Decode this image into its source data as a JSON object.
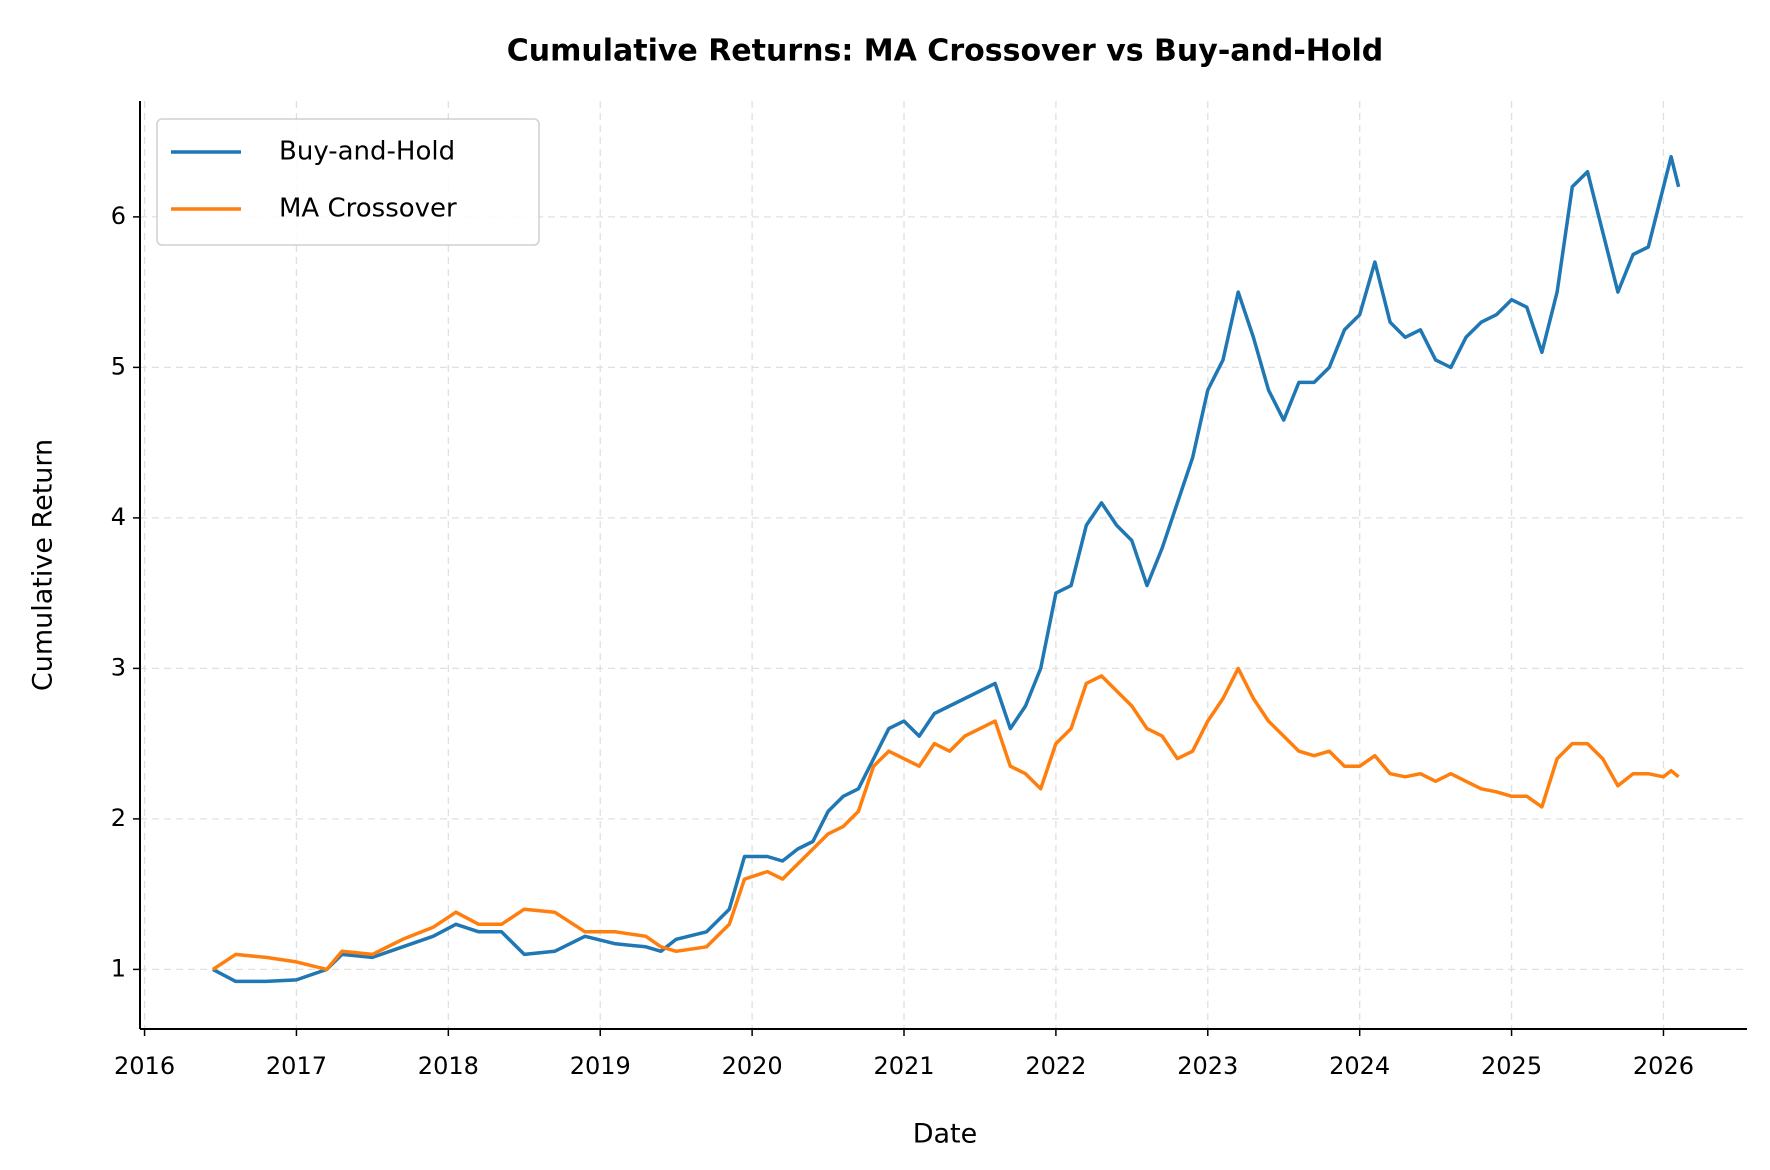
{
  "chart_data": {
    "type": "line",
    "title": "Cumulative Returns: MA Crossover vs Buy-and-Hold",
    "x_label": "Date",
    "y_label": "Cumulative Return",
    "x": [
      2016.45,
      2016.6,
      2016.8,
      2017.0,
      2017.2,
      2017.3,
      2017.5,
      2017.7,
      2017.9,
      2018.05,
      2018.2,
      2018.35,
      2018.5,
      2018.7,
      2018.9,
      2019.1,
      2019.3,
      2019.4,
      2019.5,
      2019.7,
      2019.85,
      2019.95,
      2020.1,
      2020.2,
      2020.3,
      2020.4,
      2020.5,
      2020.6,
      2020.7,
      2020.8,
      2020.9,
      2021.0,
      2021.1,
      2021.2,
      2021.3,
      2021.4,
      2021.5,
      2021.6,
      2021.7,
      2021.8,
      2021.9,
      2022.0,
      2022.1,
      2022.2,
      2022.3,
      2022.4,
      2022.5,
      2022.6,
      2022.7,
      2022.8,
      2022.9,
      2023.0,
      2023.1,
      2023.2,
      2023.3,
      2023.4,
      2023.5,
      2023.6,
      2023.7,
      2023.8,
      2023.9,
      2024.0,
      2024.1,
      2024.2,
      2024.3,
      2024.4,
      2024.5,
      2024.6,
      2024.7,
      2024.8,
      2024.9,
      2025.0,
      2025.1,
      2025.2,
      2025.3,
      2025.4,
      2025.5,
      2025.6,
      2025.7,
      2025.8,
      2025.9,
      2026.0,
      2026.05,
      2026.1
    ],
    "series": [
      {
        "name": "Buy-and-Hold",
        "color": "#1f77b4",
        "values": [
          1.0,
          0.92,
          0.92,
          0.93,
          1.0,
          1.1,
          1.08,
          1.15,
          1.22,
          1.3,
          1.25,
          1.25,
          1.1,
          1.12,
          1.22,
          1.17,
          1.15,
          1.12,
          1.2,
          1.25,
          1.4,
          1.75,
          1.75,
          1.72,
          1.8,
          1.85,
          2.05,
          2.15,
          2.2,
          2.4,
          2.6,
          2.65,
          2.55,
          2.7,
          2.75,
          2.8,
          2.85,
          2.9,
          2.6,
          2.75,
          3.0,
          3.5,
          3.55,
          3.95,
          4.1,
          3.95,
          3.85,
          3.55,
          3.8,
          4.1,
          4.4,
          4.85,
          5.05,
          5.5,
          5.2,
          4.85,
          4.65,
          4.9,
          4.9,
          5.0,
          5.25,
          5.35,
          5.7,
          5.3,
          5.2,
          5.25,
          5.05,
          5.0,
          5.2,
          5.3,
          5.35,
          5.45,
          5.4,
          5.1,
          5.5,
          6.2,
          6.3,
          5.9,
          5.5,
          5.75,
          5.8,
          6.2,
          6.4,
          6.2
        ]
      },
      {
        "name": "MA Crossover",
        "color": "#ff7f0e",
        "values": [
          1.0,
          1.1,
          1.08,
          1.05,
          1.0,
          1.12,
          1.1,
          1.2,
          1.28,
          1.38,
          1.3,
          1.3,
          1.4,
          1.38,
          1.25,
          1.25,
          1.22,
          1.15,
          1.12,
          1.15,
          1.3,
          1.6,
          1.65,
          1.6,
          1.7,
          1.8,
          1.9,
          1.95,
          2.05,
          2.35,
          2.45,
          2.4,
          2.35,
          2.5,
          2.45,
          2.55,
          2.6,
          2.65,
          2.35,
          2.3,
          2.2,
          2.5,
          2.6,
          2.9,
          2.95,
          2.85,
          2.75,
          2.6,
          2.55,
          2.4,
          2.45,
          2.65,
          2.8,
          3.0,
          2.8,
          2.65,
          2.55,
          2.45,
          2.42,
          2.45,
          2.35,
          2.35,
          2.42,
          2.3,
          2.28,
          2.3,
          2.25,
          2.3,
          2.25,
          2.2,
          2.18,
          2.15,
          2.15,
          2.08,
          2.4,
          2.5,
          2.5,
          2.4,
          2.22,
          2.3,
          2.3,
          2.28,
          2.32,
          2.28
        ]
      }
    ],
    "xlim": [
      2015.97,
      2026.55
    ],
    "xticks": [
      2016,
      2017,
      2018,
      2019,
      2020,
      2021,
      2022,
      2023,
      2024,
      2025,
      2026
    ],
    "ylim": [
      0.604,
      6.77
    ],
    "yticks": [
      1,
      2,
      3,
      4,
      5,
      6
    ],
    "grid": true,
    "legend": "upper left"
  }
}
